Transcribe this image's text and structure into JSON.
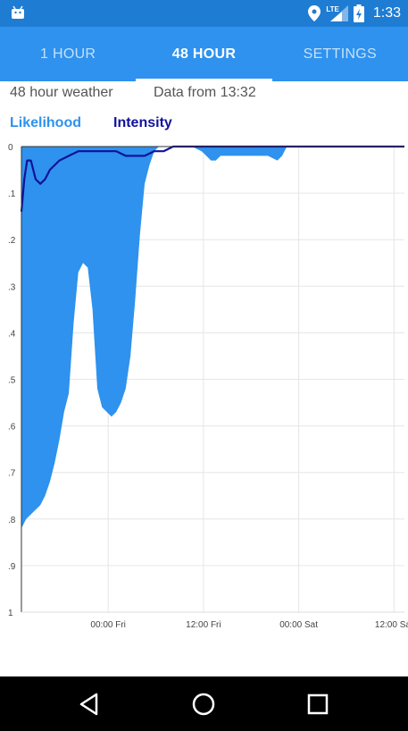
{
  "status_bar": {
    "time": "1:33",
    "network_label": "LTE",
    "icons": [
      "android-icon",
      "location-icon",
      "signal-icon",
      "battery-icon"
    ]
  },
  "tabs": [
    {
      "label": "1 HOUR",
      "active": false
    },
    {
      "label": "48 HOUR",
      "active": true
    },
    {
      "label": "SETTINGS",
      "active": false
    }
  ],
  "header": {
    "title": "48 hour weather",
    "data_from": "Data from 13:32"
  },
  "legend": {
    "likelihood": "Likelihood",
    "intensity": "Intensity"
  },
  "colors": {
    "status_bar": "#1f7cd3",
    "tab_bar": "#2e92ee",
    "likelihood": "#2e92ee",
    "intensity": "#10129a"
  },
  "chart_data": {
    "type": "area",
    "ylim": [
      0,
      1
    ],
    "y_inverted": true,
    "xlim": [
      0,
      40.4
    ],
    "y_ticks": [
      "0",
      ".1",
      ".2",
      ".3",
      ".4",
      ".5",
      ".6",
      ".7",
      ".8",
      ".9",
      "1"
    ],
    "x_ticks": [
      {
        "label": "00:00 Fri",
        "x": 9.15
      },
      {
        "label": "12:00 Fri",
        "x": 19.2
      },
      {
        "label": "00:00 Sat",
        "x": 29.25
      },
      {
        "label": "12:00 Sat",
        "x": 39.3
      }
    ],
    "grid": true,
    "series": [
      {
        "name": "Likelihood",
        "kind": "area",
        "x": [
          0,
          0.5,
          1.0,
          1.5,
          2.0,
          2.5,
          3.0,
          3.5,
          4.0,
          4.5,
          5.0,
          5.5,
          6.0,
          6.5,
          7.0,
          7.5,
          8.0,
          8.5,
          9.0,
          9.5,
          10.0,
          10.5,
          11.0,
          11.5,
          12.0,
          12.5,
          13.0,
          13.5,
          14.0,
          14.5,
          15.0,
          15.5,
          16.0,
          16.5,
          17.0,
          17.5,
          18.0,
          19.0,
          19.5,
          20.0,
          20.5,
          21.0,
          21.5,
          22.0,
          23.0,
          24.0,
          25.0,
          26.0,
          27.0,
          27.5,
          28.0,
          28.5,
          29.0,
          30.0,
          32.0,
          34.0,
          36.0,
          38.0,
          40.4
        ],
        "values": [
          0.82,
          0.8,
          0.79,
          0.78,
          0.77,
          0.75,
          0.72,
          0.68,
          0.63,
          0.57,
          0.53,
          0.38,
          0.27,
          0.25,
          0.26,
          0.35,
          0.52,
          0.56,
          0.57,
          0.58,
          0.57,
          0.55,
          0.52,
          0.45,
          0.33,
          0.19,
          0.08,
          0.04,
          0.01,
          0.0,
          0.0,
          0.0,
          0.0,
          0.0,
          0.0,
          0.0,
          0.0,
          0.01,
          0.02,
          0.03,
          0.03,
          0.02,
          0.02,
          0.02,
          0.02,
          0.02,
          0.02,
          0.02,
          0.03,
          0.02,
          0.0,
          0.0,
          0.0,
          0.0,
          0.0,
          0.0,
          0.0,
          0.0,
          0.0
        ]
      },
      {
        "name": "Intensity",
        "kind": "line",
        "x": [
          0,
          0.3,
          0.6,
          1.0,
          1.5,
          2.0,
          2.5,
          3.0,
          4.0,
          5.0,
          6.0,
          7.0,
          8.0,
          9.0,
          10.0,
          11.0,
          12.0,
          13.0,
          14.0,
          15.0,
          16.0,
          18.0,
          20.0,
          25.0,
          30.0,
          35.0,
          40.4
        ],
        "values": [
          0.14,
          0.07,
          0.03,
          0.03,
          0.07,
          0.08,
          0.07,
          0.05,
          0.03,
          0.02,
          0.01,
          0.01,
          0.01,
          0.01,
          0.01,
          0.02,
          0.02,
          0.02,
          0.01,
          0.01,
          0.0,
          0.0,
          0.0,
          0.0,
          0.0,
          0.0,
          0.0
        ]
      }
    ]
  }
}
